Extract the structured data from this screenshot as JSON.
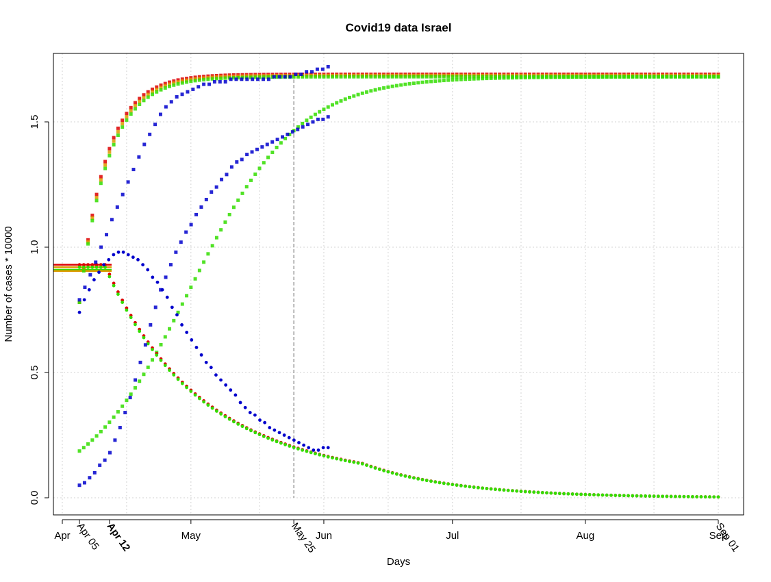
{
  "chart_data": {
    "type": "scatter",
    "title": "Covid19 data Israel",
    "xlabel": "Days",
    "ylabel": "Number of cases * 10000",
    "x_origin_date": "2020-04-01",
    "xlim_days": [
      -0.5,
      155
    ],
    "ylim": [
      -0.06,
      1.76
    ],
    "y_ticks": [
      0.0,
      0.5,
      1.0,
      1.5
    ],
    "y_tick_labels": [
      "0.0",
      "0.5",
      "1.0",
      "1.5"
    ],
    "x_ticks": [
      {
        "day": 0,
        "label": "Apr",
        "rotated": false
      },
      {
        "day": 4,
        "label": "Apr 05",
        "rotated": true
      },
      {
        "day": 11,
        "label": "Apr 12",
        "rotated": true,
        "bold": true
      },
      {
        "day": 30,
        "label": "May",
        "rotated": false
      },
      {
        "day": 54,
        "label": "May 25",
        "rotated": true
      },
      {
        "day": 61,
        "label": "Jun",
        "rotated": false
      },
      {
        "day": 91,
        "label": "Jul",
        "rotated": false
      },
      {
        "day": 122,
        "label": "Aug",
        "rotated": false
      },
      {
        "day": 153,
        "label": "Sep",
        "rotated": false
      },
      {
        "day": 153,
        "label": "Sep 01",
        "rotated": true
      }
    ],
    "grid": true,
    "vertical_marker_day": 54,
    "colors": {
      "observed": "#0000cc",
      "fit_red": "#dd0000",
      "fit_orange": "#dd9900",
      "fit_green": "#33dd00"
    },
    "series": [
      {
        "role": "observed-cumulative",
        "color": "#0000cc",
        "marker": "square-x",
        "x_start": 4,
        "x_end": 62,
        "values": [
          0.05,
          0.06,
          0.08,
          0.1,
          0.13,
          0.15,
          0.18,
          0.23,
          0.28,
          0.34,
          0.4,
          0.47,
          0.54,
          0.61,
          0.69,
          0.76,
          0.83,
          0.88,
          0.93,
          0.98,
          1.02,
          1.06,
          1.09,
          1.13,
          1.16,
          1.19,
          1.22,
          1.24,
          1.27,
          1.29,
          1.32,
          1.34,
          1.35,
          1.37,
          1.38,
          1.39,
          1.4,
          1.41,
          1.42,
          1.43,
          1.44,
          1.45,
          1.46,
          1.47,
          1.48,
          1.49,
          1.5,
          1.51,
          1.51,
          1.52
        ]
      },
      {
        "role": "observed-active",
        "color": "#0000cc",
        "marker": "dot",
        "x_start": 4,
        "x_end": 62,
        "values": [
          0.74,
          0.79,
          0.83,
          0.87,
          0.9,
          0.93,
          0.95,
          0.97,
          0.98,
          0.98,
          0.97,
          0.96,
          0.95,
          0.93,
          0.91,
          0.88,
          0.86,
          0.83,
          0.8,
          0.76,
          0.73,
          0.69,
          0.66,
          0.63,
          0.6,
          0.57,
          0.54,
          0.52,
          0.49,
          0.47,
          0.45,
          0.43,
          0.41,
          0.38,
          0.36,
          0.34,
          0.33,
          0.31,
          0.3,
          0.28,
          0.27,
          0.26,
          0.25,
          0.24,
          0.23,
          0.22,
          0.21,
          0.2,
          0.19,
          0.19,
          0.2,
          0.2
        ]
      },
      {
        "role": "observed-confirmed",
        "color": "#0000cc",
        "marker": "square-x",
        "x_start": 4,
        "x_end": 62,
        "values": [
          0.79,
          0.84,
          0.89,
          0.94,
          1.0,
          1.05,
          1.11,
          1.16,
          1.21,
          1.26,
          1.31,
          1.36,
          1.41,
          1.45,
          1.49,
          1.53,
          1.56,
          1.58,
          1.6,
          1.61,
          1.62,
          1.63,
          1.64,
          1.65,
          1.65,
          1.66,
          1.66,
          1.66,
          1.67,
          1.67,
          1.67,
          1.67,
          1.67,
          1.67,
          1.67,
          1.67,
          1.68,
          1.68,
          1.68,
          1.68,
          1.69,
          1.69,
          1.7,
          1.7,
          1.71,
          1.71,
          1.72
        ]
      },
      {
        "role": "fit-confirmed",
        "color": "#dd0000",
        "marker": "square",
        "x_start": 4,
        "x_end": 153,
        "k": 0.16,
        "from": 0.78,
        "to": 1.69
      },
      {
        "role": "fit-confirmed",
        "color": "#dd9900",
        "marker": "square",
        "x_start": 4,
        "x_end": 153,
        "k": 0.155,
        "from": 0.78,
        "to": 1.685
      },
      {
        "role": "fit-confirmed",
        "color": "#33dd00",
        "marker": "square",
        "x_start": 4,
        "x_end": 153,
        "k": 0.15,
        "from": 0.78,
        "to": 1.68
      },
      {
        "role": "fit-recovered",
        "color": "#33dd00",
        "marker": "square",
        "x_start": 4,
        "x_end": 153,
        "x_mid": 30,
        "k": 0.08,
        "upper": 1.68
      },
      {
        "role": "fit-active",
        "color": "#dd0000",
        "marker": "dot",
        "x_start": 4,
        "x_end": 153,
        "a": 0.93,
        "decay": 0.042,
        "plateau_until": 10
      },
      {
        "role": "fit-active",
        "color": "#33dd00",
        "marker": "dot",
        "x_start": 4,
        "x_end": 153,
        "a": 0.92,
        "decay": 0.042,
        "plateau_until": 10
      }
    ],
    "initial_levels": [
      {
        "color": "#dd0000",
        "y": 0.93
      },
      {
        "color": "#dd9900",
        "y": 0.92
      },
      {
        "color": "#33dd00",
        "y": 0.91
      },
      {
        "color": "#dd9900",
        "y": 0.905
      }
    ]
  }
}
